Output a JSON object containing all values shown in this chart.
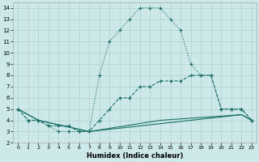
{
  "xlabel": "Humidex (Indice chaleur)",
  "xlim": [
    -0.5,
    23.5
  ],
  "ylim": [
    2,
    14.5
  ],
  "xticks": [
    0,
    1,
    2,
    3,
    4,
    5,
    6,
    7,
    8,
    9,
    10,
    11,
    12,
    13,
    14,
    15,
    16,
    17,
    18,
    19,
    20,
    21,
    22,
    23
  ],
  "yticks": [
    2,
    3,
    4,
    5,
    6,
    7,
    8,
    9,
    10,
    11,
    12,
    13,
    14
  ],
  "bg_color": "#cce8e8",
  "line_color": "#1a7068",
  "grid_color": "#b0d0d0",
  "curve1_x": [
    0,
    1,
    2,
    3,
    4,
    5,
    6,
    7,
    8,
    9,
    10,
    11,
    12,
    13,
    14,
    15,
    16,
    17,
    18,
    19,
    20,
    21,
    22,
    23
  ],
  "curve1_y": [
    5,
    4,
    4,
    3.5,
    3,
    3,
    3,
    3,
    8,
    11,
    12,
    13,
    14,
    14,
    14,
    13,
    12,
    9,
    8,
    8,
    5,
    5,
    5,
    4
  ],
  "curve1_style": "dotted",
  "curve1_marker": "+",
  "curve2_x": [
    0,
    1,
    2,
    3,
    4,
    5,
    6,
    7,
    8,
    9,
    10,
    11,
    12,
    13,
    14,
    15,
    16,
    17,
    18,
    19,
    20,
    21,
    22,
    23
  ],
  "curve2_y": [
    5,
    4,
    4,
    3.5,
    3.5,
    3.5,
    3,
    3,
    4,
    5,
    6,
    6,
    7,
    7,
    7.5,
    7.5,
    7.5,
    8,
    8,
    8,
    5,
    5,
    5,
    4
  ],
  "curve2_style": "dashed",
  "curve2_marker": "+",
  "curve3_x": [
    0,
    2,
    7,
    22,
    23
  ],
  "curve3_y": [
    5,
    4,
    3,
    4.5,
    4
  ],
  "curve3_style": "solid",
  "curve3_marker": null,
  "curve4_x": [
    0,
    2,
    7,
    14,
    22,
    23
  ],
  "curve4_y": [
    5,
    4,
    3,
    4,
    4.5,
    4
  ],
  "curve4_style": "solid",
  "curve4_marker": null
}
